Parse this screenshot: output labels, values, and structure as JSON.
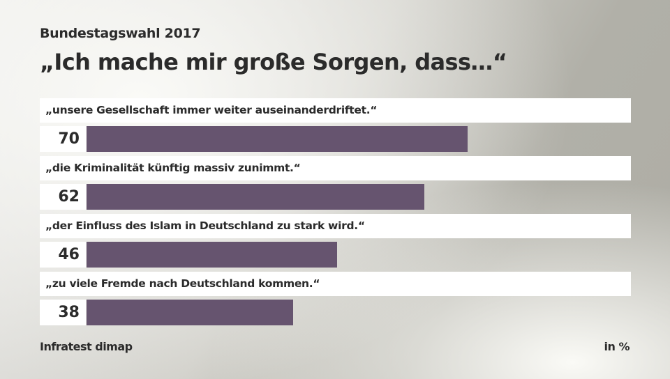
{
  "header": {
    "subtitle": "Bundestagswahl 2017",
    "title": "„Ich mache mir große Sorgen, dass…“"
  },
  "footer": {
    "source": "Infratest dimap",
    "unit": "in %"
  },
  "colors": {
    "bar": "#66546f",
    "label_band": "#ffffff",
    "text": "#2b2b2b"
  },
  "items": [
    {
      "label": "„unsere Gesellschaft immer weiter auseinanderdriftet.“",
      "value": "70"
    },
    {
      "label": "„die Kriminalität künftig massiv zunimmt.“",
      "value": "62"
    },
    {
      "label": "„der Einfluss des Islam in Deutschland zu stark wird.“",
      "value": "46"
    },
    {
      "label": "„zu viele Fremde nach Deutschland kommen.“",
      "value": "38"
    }
  ],
  "chart_data": {
    "type": "bar",
    "orientation": "horizontal",
    "title": "„Ich mache mir große Sorgen, dass…“",
    "subtitle": "Bundestagswahl 2017",
    "categories": [
      "„unsere Gesellschaft immer weiter auseinanderdriftet.“",
      "„die Kriminalität künftig massiv zunimmt.“",
      "„der Einfluss des Islam in Deutschland zu stark wird.“",
      "„zu viele Fremde nach Deutschland kommen.“"
    ],
    "values": [
      70,
      62,
      46,
      38
    ],
    "unit": "in %",
    "source": "Infratest dimap",
    "xlabel": "",
    "ylabel": "",
    "xlim": [
      0,
      100
    ],
    "grid": false,
    "legend": "none",
    "data_labels": true
  }
}
